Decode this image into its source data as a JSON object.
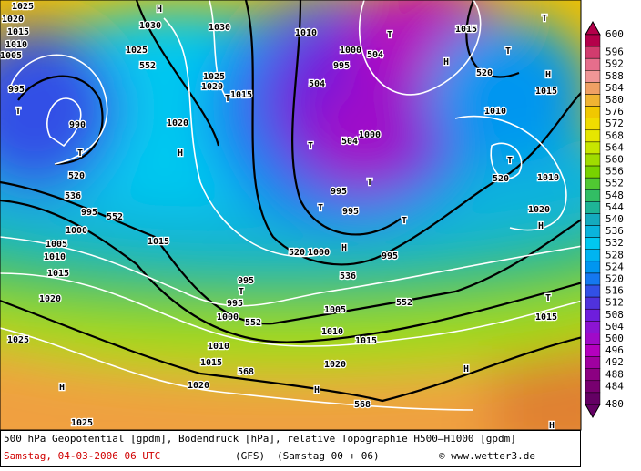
{
  "map": {
    "labels": [
      "1025",
      "1020",
      "1015",
      "1010",
      "1005",
      "995",
      "T",
      "990",
      "T",
      "520",
      "536",
      "995",
      "552",
      "1000",
      "1005",
      "1010",
      "1015",
      "1020",
      "1025",
      "H",
      "1025",
      "1030",
      "1025",
      "552",
      "H",
      "1020",
      "H",
      "1015",
      "1030",
      "1025",
      "1020",
      "1015",
      "T",
      "995",
      "T",
      "995",
      "1000",
      "552",
      "1010",
      "1015",
      "568",
      "1020",
      "H",
      "1020",
      "1015",
      "1010",
      "1005",
      "568",
      "552",
      "536",
      "995",
      "520",
      "1000",
      "H",
      "T",
      "995",
      "T",
      "995",
      "T",
      "504",
      "1000",
      "T",
      "504",
      "995",
      "1000",
      "1010",
      "504",
      "T",
      "H",
      "1015",
      "T",
      "520",
      "T",
      "H",
      "1015",
      "1010",
      "T",
      "520",
      "1010",
      "1020",
      "H",
      "T",
      "1015",
      "H",
      "H"
    ]
  },
  "colorbar": {
    "labels": [
      600,
      596,
      592,
      588,
      584,
      580,
      576,
      572,
      568,
      564,
      560,
      556,
      552,
      548,
      544,
      540,
      536,
      532,
      528,
      524,
      520,
      516,
      512,
      508,
      504,
      500,
      496,
      492,
      488,
      484,
      480
    ],
    "colors": [
      "#b4004a",
      "#d23c6e",
      "#e66e8c",
      "#f09696",
      "#f0a064",
      "#f0b432",
      "#f0c800",
      "#f0dc00",
      "#e6e600",
      "#c8e600",
      "#a0dc00",
      "#78d200",
      "#50c832",
      "#32be64",
      "#1eb496",
      "#14aabe",
      "#0ab4dc",
      "#00c8f0",
      "#00b4f0",
      "#0096f0",
      "#1478f0",
      "#3250e6",
      "#5032dc",
      "#6e1edc",
      "#8c14d2",
      "#a00ac8",
      "#b400be",
      "#a000a0",
      "#8c0082",
      "#780070",
      "#640064"
    ]
  },
  "footer": {
    "line1": "500 hPa Geopotential [gpdm], Bodendruck [hPa], relative Topographie H500–H1000 [gpdm]",
    "date": "Samstag, 04-03-2006  06 UTC",
    "model": "(GFS)",
    "run": "(Samstag 00 + 06)",
    "credit": "© www.wetter3.de"
  }
}
